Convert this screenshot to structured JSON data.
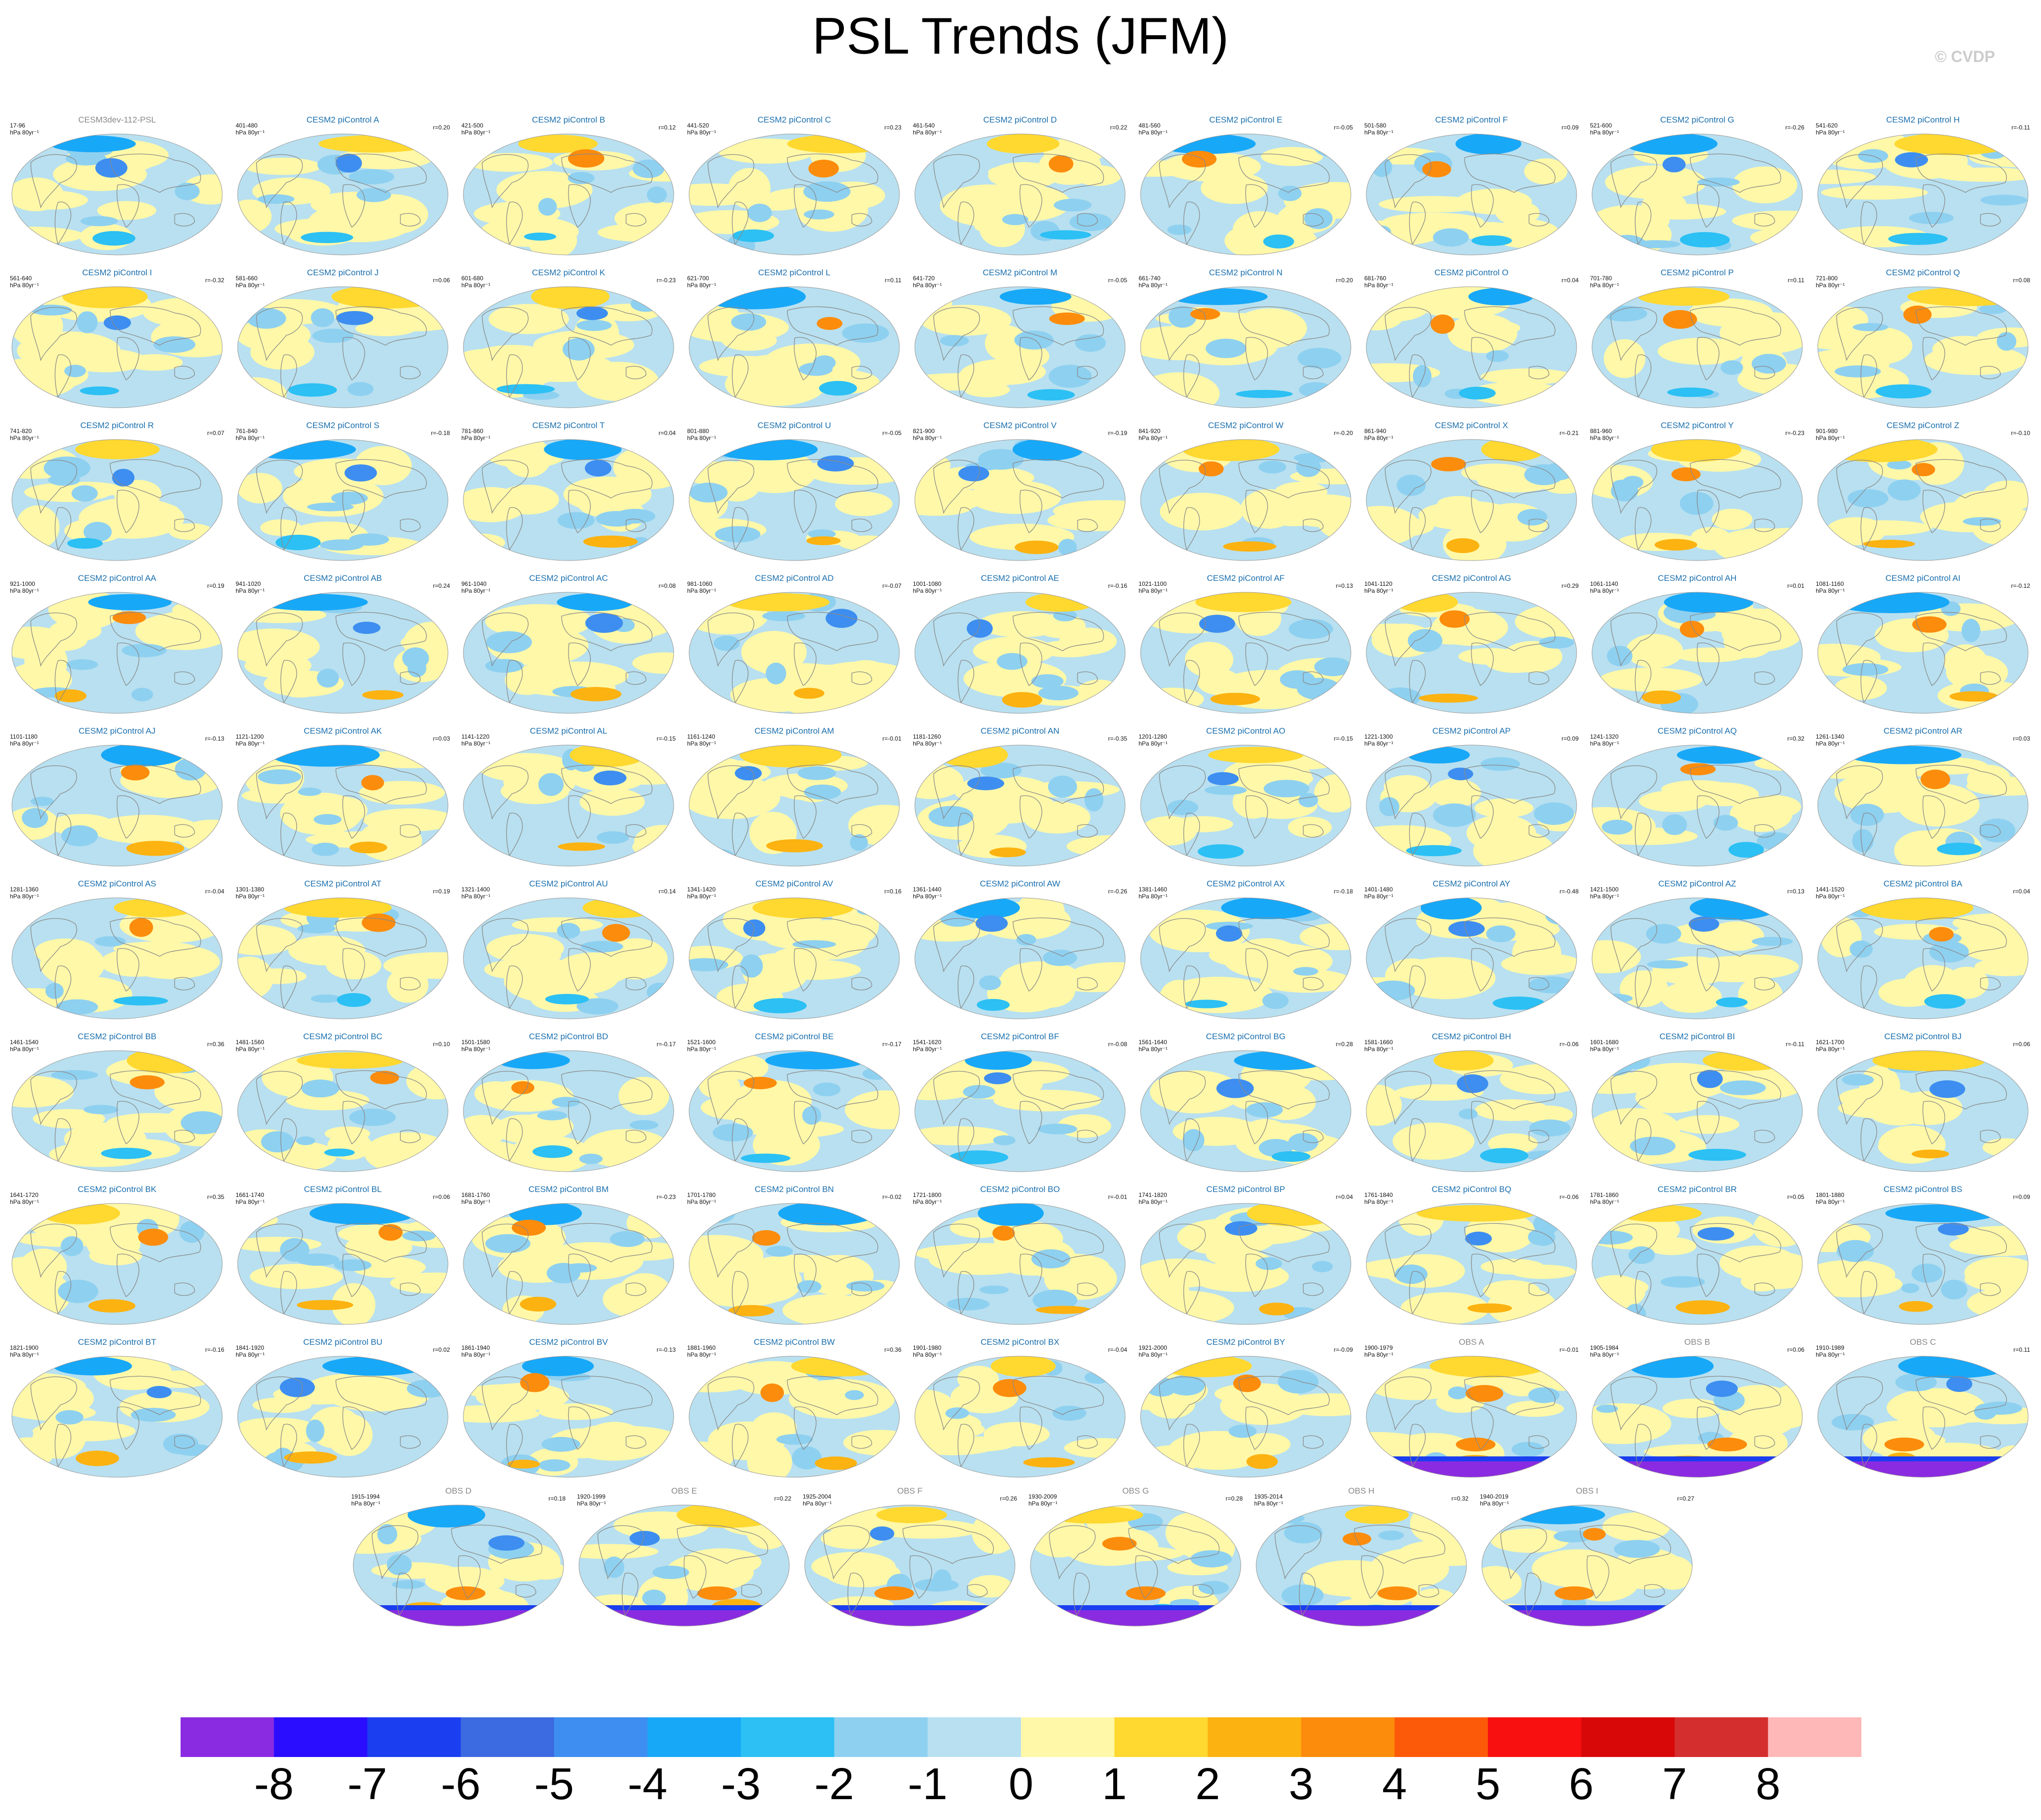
{
  "title": "PSL Trends (JFM)",
  "copyright": "© CVDP",
  "chart_data": {
    "type": "heatmap",
    "variable": "PSL",
    "season": "JFM",
    "colorbar": {
      "tick_labels": [
        "-8",
        "-7",
        "-6",
        "-5",
        "-4",
        "-3",
        "-2",
        "-1",
        "0",
        "1",
        "2",
        "3",
        "4",
        "5",
        "6",
        "7",
        "8"
      ],
      "colors": [
        "#8a2be2",
        "#2a0dff",
        "#1a3ef0",
        "#3c6ae0",
        "#3d8ef0",
        "#18a8f8",
        "#2cc0f4",
        "#8ed0f0",
        "#b8e0f0",
        "#fff8a8",
        "#ffd830",
        "#fcb210",
        "#fc8c0c",
        "#fc5a08",
        "#f81010",
        "#d80808",
        "#d42e2e",
        "#ffb8b8"
      ]
    },
    "panels": [
      {
        "title": "CESM3dev-112-PSL",
        "years": "17-96",
        "units": "hPa 80yr⁻¹",
        "r": "",
        "obs": false,
        "base": true
      },
      {
        "title": "CESM2 piControl A",
        "years": "401-480",
        "units": "hPa 80yr⁻¹",
        "r": "r=0.20"
      },
      {
        "title": "CESM2 piControl B",
        "years": "421-500",
        "units": "hPa 80yr⁻¹",
        "r": "r=0.12"
      },
      {
        "title": "CESM2 piControl C",
        "years": "441-520",
        "units": "hPa 80yr⁻¹",
        "r": "r=0.23"
      },
      {
        "title": "CESM2 piControl D",
        "years": "461-540",
        "units": "hPa 80yr⁻¹",
        "r": "r=0.22"
      },
      {
        "title": "CESM2 piControl E",
        "years": "481-560",
        "units": "hPa 80yr⁻¹",
        "r": "r=-0.05"
      },
      {
        "title": "CESM2 piControl F",
        "years": "501-580",
        "units": "hPa 80yr⁻¹",
        "r": "r=0.09"
      },
      {
        "title": "CESM2 piControl G",
        "years": "521-600",
        "units": "hPa 80yr⁻¹",
        "r": "r=-0.26"
      },
      {
        "title": "CESM2 piControl H",
        "years": "541-620",
        "units": "hPa 80yr⁻¹",
        "r": "r=-0.11"
      },
      {
        "title": "CESM2 piControl I",
        "years": "561-640",
        "units": "hPa 80yr⁻¹",
        "r": "r=-0.32"
      },
      {
        "title": "CESM2 piControl J",
        "years": "581-660",
        "units": "hPa 80yr⁻¹",
        "r": "r=0.06"
      },
      {
        "title": "CESM2 piControl K",
        "years": "601-680",
        "units": "hPa 80yr⁻¹",
        "r": "r=-0.23"
      },
      {
        "title": "CESM2 piControl L",
        "years": "621-700",
        "units": "hPa 80yr⁻¹",
        "r": "r=0.11"
      },
      {
        "title": "CESM2 piControl M",
        "years": "641-720",
        "units": "hPa 80yr⁻¹",
        "r": "r=-0.05"
      },
      {
        "title": "CESM2 piControl N",
        "years": "661-740",
        "units": "hPa 80yr⁻¹",
        "r": "r=0.20"
      },
      {
        "title": "CESM2 piControl O",
        "years": "681-760",
        "units": "hPa 80yr⁻¹",
        "r": "r=0.04"
      },
      {
        "title": "CESM2 piControl P",
        "years": "701-780",
        "units": "hPa 80yr⁻¹",
        "r": "r=0.11"
      },
      {
        "title": "CESM2 piControl Q",
        "years": "721-800",
        "units": "hPa 80yr⁻¹",
        "r": "r=0.08"
      },
      {
        "title": "CESM2 piControl R",
        "years": "741-820",
        "units": "hPa 80yr⁻¹",
        "r": "r=0.07"
      },
      {
        "title": "CESM2 piControl S",
        "years": "761-840",
        "units": "hPa 80yr⁻¹",
        "r": "r=-0.18"
      },
      {
        "title": "CESM2 piControl T",
        "years": "781-860",
        "units": "hPa 80yr⁻¹",
        "r": "r=0.04"
      },
      {
        "title": "CESM2 piControl U",
        "years": "801-880",
        "units": "hPa 80yr⁻¹",
        "r": "r=-0.05"
      },
      {
        "title": "CESM2 piControl V",
        "years": "821-900",
        "units": "hPa 80yr⁻¹",
        "r": "r=-0.19"
      },
      {
        "title": "CESM2 piControl W",
        "years": "841-920",
        "units": "hPa 80yr⁻¹",
        "r": "r=-0.20"
      },
      {
        "title": "CESM2 piControl X",
        "years": "861-940",
        "units": "hPa 80yr⁻¹",
        "r": "r=-0.21"
      },
      {
        "title": "CESM2 piControl Y",
        "years": "881-960",
        "units": "hPa 80yr⁻¹",
        "r": "r=-0.23"
      },
      {
        "title": "CESM2 piControl Z",
        "years": "901-980",
        "units": "hPa 80yr⁻¹",
        "r": "r=-0.10"
      },
      {
        "title": "CESM2 piControl AA",
        "years": "921-1000",
        "units": "hPa 80yr⁻¹",
        "r": "r=0.19"
      },
      {
        "title": "CESM2 piControl AB",
        "years": "941-1020",
        "units": "hPa 80yr⁻¹",
        "r": "r=0.24"
      },
      {
        "title": "CESM2 piControl AC",
        "years": "961-1040",
        "units": "hPa 80yr⁻¹",
        "r": "r=0.08"
      },
      {
        "title": "CESM2 piControl AD",
        "years": "981-1060",
        "units": "hPa 80yr⁻¹",
        "r": "r=-0.07"
      },
      {
        "title": "CESM2 piControl AE",
        "years": "1001-1080",
        "units": "hPa 80yr⁻¹",
        "r": "r=-0.16"
      },
      {
        "title": "CESM2 piControl AF",
        "years": "1021-1100",
        "units": "hPa 80yr⁻¹",
        "r": "r=0.13"
      },
      {
        "title": "CESM2 piControl AG",
        "years": "1041-1120",
        "units": "hPa 80yr⁻¹",
        "r": "r=0.29"
      },
      {
        "title": "CESM2 piControl AH",
        "years": "1061-1140",
        "units": "hPa 80yr⁻¹",
        "r": "r=0.01"
      },
      {
        "title": "CESM2 piControl AI",
        "years": "1081-1160",
        "units": "hPa 80yr⁻¹",
        "r": "r=-0.12"
      },
      {
        "title": "CESM2 piControl AJ",
        "years": "1101-1180",
        "units": "hPa 80yr⁻¹",
        "r": "r=-0.13"
      },
      {
        "title": "CESM2 piControl AK",
        "years": "1121-1200",
        "units": "hPa 80yr⁻¹",
        "r": "r=0.03"
      },
      {
        "title": "CESM2 piControl AL",
        "years": "1141-1220",
        "units": "hPa 80yr⁻¹",
        "r": "r=-0.15"
      },
      {
        "title": "CESM2 piControl AM",
        "years": "1161-1240",
        "units": "hPa 80yr⁻¹",
        "r": "r=-0.01"
      },
      {
        "title": "CESM2 piControl AN",
        "years": "1181-1260",
        "units": "hPa 80yr⁻¹",
        "r": "r=-0.35"
      },
      {
        "title": "CESM2 piControl AO",
        "years": "1201-1280",
        "units": "hPa 80yr⁻¹",
        "r": "r=-0.15"
      },
      {
        "title": "CESM2 piControl AP",
        "years": "1221-1300",
        "units": "hPa 80yr⁻¹",
        "r": "r=0.09"
      },
      {
        "title": "CESM2 piControl AQ",
        "years": "1241-1320",
        "units": "hPa 80yr⁻¹",
        "r": "r=0.32"
      },
      {
        "title": "CESM2 piControl AR",
        "years": "1261-1340",
        "units": "hPa 80yr⁻¹",
        "r": "r=0.03"
      },
      {
        "title": "CESM2 piControl AS",
        "years": "1281-1360",
        "units": "hPa 80yr⁻¹",
        "r": "r=-0.04"
      },
      {
        "title": "CESM2 piControl AT",
        "years": "1301-1380",
        "units": "hPa 80yr⁻¹",
        "r": "r=0.19"
      },
      {
        "title": "CESM2 piControl AU",
        "years": "1321-1400",
        "units": "hPa 80yr⁻¹",
        "r": "r=0.14"
      },
      {
        "title": "CESM2 piControl AV",
        "years": "1341-1420",
        "units": "hPa 80yr⁻¹",
        "r": "r=0.16"
      },
      {
        "title": "CESM2 piControl AW",
        "years": "1361-1440",
        "units": "hPa 80yr⁻¹",
        "r": "r=-0.26"
      },
      {
        "title": "CESM2 piControl AX",
        "years": "1381-1460",
        "units": "hPa 80yr⁻¹",
        "r": "r=-0.18"
      },
      {
        "title": "CESM2 piControl AY",
        "years": "1401-1480",
        "units": "hPa 80yr⁻¹",
        "r": "r=-0.48"
      },
      {
        "title": "CESM2 piControl AZ",
        "years": "1421-1500",
        "units": "hPa 80yr⁻¹",
        "r": "r=0.13"
      },
      {
        "title": "CESM2 piControl BA",
        "years": "1441-1520",
        "units": "hPa 80yr⁻¹",
        "r": "r=0.04"
      },
      {
        "title": "CESM2 piControl BB",
        "years": "1461-1540",
        "units": "hPa 80yr⁻¹",
        "r": "r=0.36"
      },
      {
        "title": "CESM2 piControl BC",
        "years": "1481-1560",
        "units": "hPa 80yr⁻¹",
        "r": "r=0.10"
      },
      {
        "title": "CESM2 piControl BD",
        "years": "1501-1580",
        "units": "hPa 80yr⁻¹",
        "r": "r=-0.17"
      },
      {
        "title": "CESM2 piControl BE",
        "years": "1521-1600",
        "units": "hPa 80yr⁻¹",
        "r": "r=-0.17"
      },
      {
        "title": "CESM2 piControl BF",
        "years": "1541-1620",
        "units": "hPa 80yr⁻¹",
        "r": "r=-0.08"
      },
      {
        "title": "CESM2 piControl BG",
        "years": "1561-1640",
        "units": "hPa 80yr⁻¹",
        "r": "r=0.28"
      },
      {
        "title": "CESM2 piControl BH",
        "years": "1581-1660",
        "units": "hPa 80yr⁻¹",
        "r": "r=-0.06"
      },
      {
        "title": "CESM2 piControl BI",
        "years": "1601-1680",
        "units": "hPa 80yr⁻¹",
        "r": "r=-0.11"
      },
      {
        "title": "CESM2 piControl BJ",
        "years": "1621-1700",
        "units": "hPa 80yr⁻¹",
        "r": "r=0.06"
      },
      {
        "title": "CESM2 piControl BK",
        "years": "1641-1720",
        "units": "hPa 80yr⁻¹",
        "r": "r=0.35"
      },
      {
        "title": "CESM2 piControl BL",
        "years": "1661-1740",
        "units": "hPa 80yr⁻¹",
        "r": "r=0.06"
      },
      {
        "title": "CESM2 piControl BM",
        "years": "1681-1760",
        "units": "hPa 80yr⁻¹",
        "r": "r=-0.23"
      },
      {
        "title": "CESM2 piControl BN",
        "years": "1701-1780",
        "units": "hPa 80yr⁻¹",
        "r": "r=-0.02"
      },
      {
        "title": "CESM2 piControl BO",
        "years": "1721-1800",
        "units": "hPa 80yr⁻¹",
        "r": "r=-0.01"
      },
      {
        "title": "CESM2 piControl BP",
        "years": "1741-1820",
        "units": "hPa 80yr⁻¹",
        "r": "r=0.04"
      },
      {
        "title": "CESM2 piControl BQ",
        "years": "1761-1840",
        "units": "hPa 80yr⁻¹",
        "r": "r=-0.06"
      },
      {
        "title": "CESM2 piControl BR",
        "years": "1781-1860",
        "units": "hPa 80yr⁻¹",
        "r": "r=0.05"
      },
      {
        "title": "CESM2 piControl BS",
        "years": "1801-1880",
        "units": "hPa 80yr⁻¹",
        "r": "r=0.09"
      },
      {
        "title": "CESM2 piControl BT",
        "years": "1821-1900",
        "units": "hPa 80yr⁻¹",
        "r": "r=-0.16"
      },
      {
        "title": "CESM2 piControl BU",
        "years": "1841-1920",
        "units": "hPa 80yr⁻¹",
        "r": "r=0.02"
      },
      {
        "title": "CESM2 piControl BV",
        "years": "1861-1940",
        "units": "hPa 80yr⁻¹",
        "r": "r=-0.13"
      },
      {
        "title": "CESM2 piControl BW",
        "years": "1881-1960",
        "units": "hPa 80yr⁻¹",
        "r": "r=0.36"
      },
      {
        "title": "CESM2 piControl BX",
        "years": "1901-1980",
        "units": "hPa 80yr⁻¹",
        "r": "r=-0.04"
      },
      {
        "title": "CESM2 piControl BY",
        "years": "1921-2000",
        "units": "hPa 80yr⁻¹",
        "r": "r=-0.09"
      },
      {
        "title": "OBS A",
        "years": "1900-1979",
        "units": "hPa 80yr⁻¹",
        "r": "r=-0.01",
        "obs": true
      },
      {
        "title": "OBS B",
        "years": "1905-1984",
        "units": "hPa 80yr⁻¹",
        "r": "r=0.06",
        "obs": true
      },
      {
        "title": "OBS C",
        "years": "1910-1989",
        "units": "hPa 80yr⁻¹",
        "r": "r=0.11",
        "obs": true
      },
      {
        "title": "OBS D",
        "years": "1915-1994",
        "units": "hPa 80yr⁻¹",
        "r": "r=0.18",
        "obs": true
      },
      {
        "title": "OBS E",
        "years": "1920-1999",
        "units": "hPa 80yr⁻¹",
        "r": "r=0.22",
        "obs": true
      },
      {
        "title": "OBS F",
        "years": "1925-2004",
        "units": "hPa 80yr⁻¹",
        "r": "r=0.26",
        "obs": true
      },
      {
        "title": "OBS G",
        "years": "1930-2009",
        "units": "hPa 80yr⁻¹",
        "r": "r=0.28",
        "obs": true
      },
      {
        "title": "OBS H",
        "years": "1935-2014",
        "units": "hPa 80yr⁻¹",
        "r": "r=0.32",
        "obs": true
      },
      {
        "title": "OBS I",
        "years": "1940-2019",
        "units": "hPa 80yr⁻¹",
        "r": "r=0.27",
        "obs": true
      }
    ]
  }
}
